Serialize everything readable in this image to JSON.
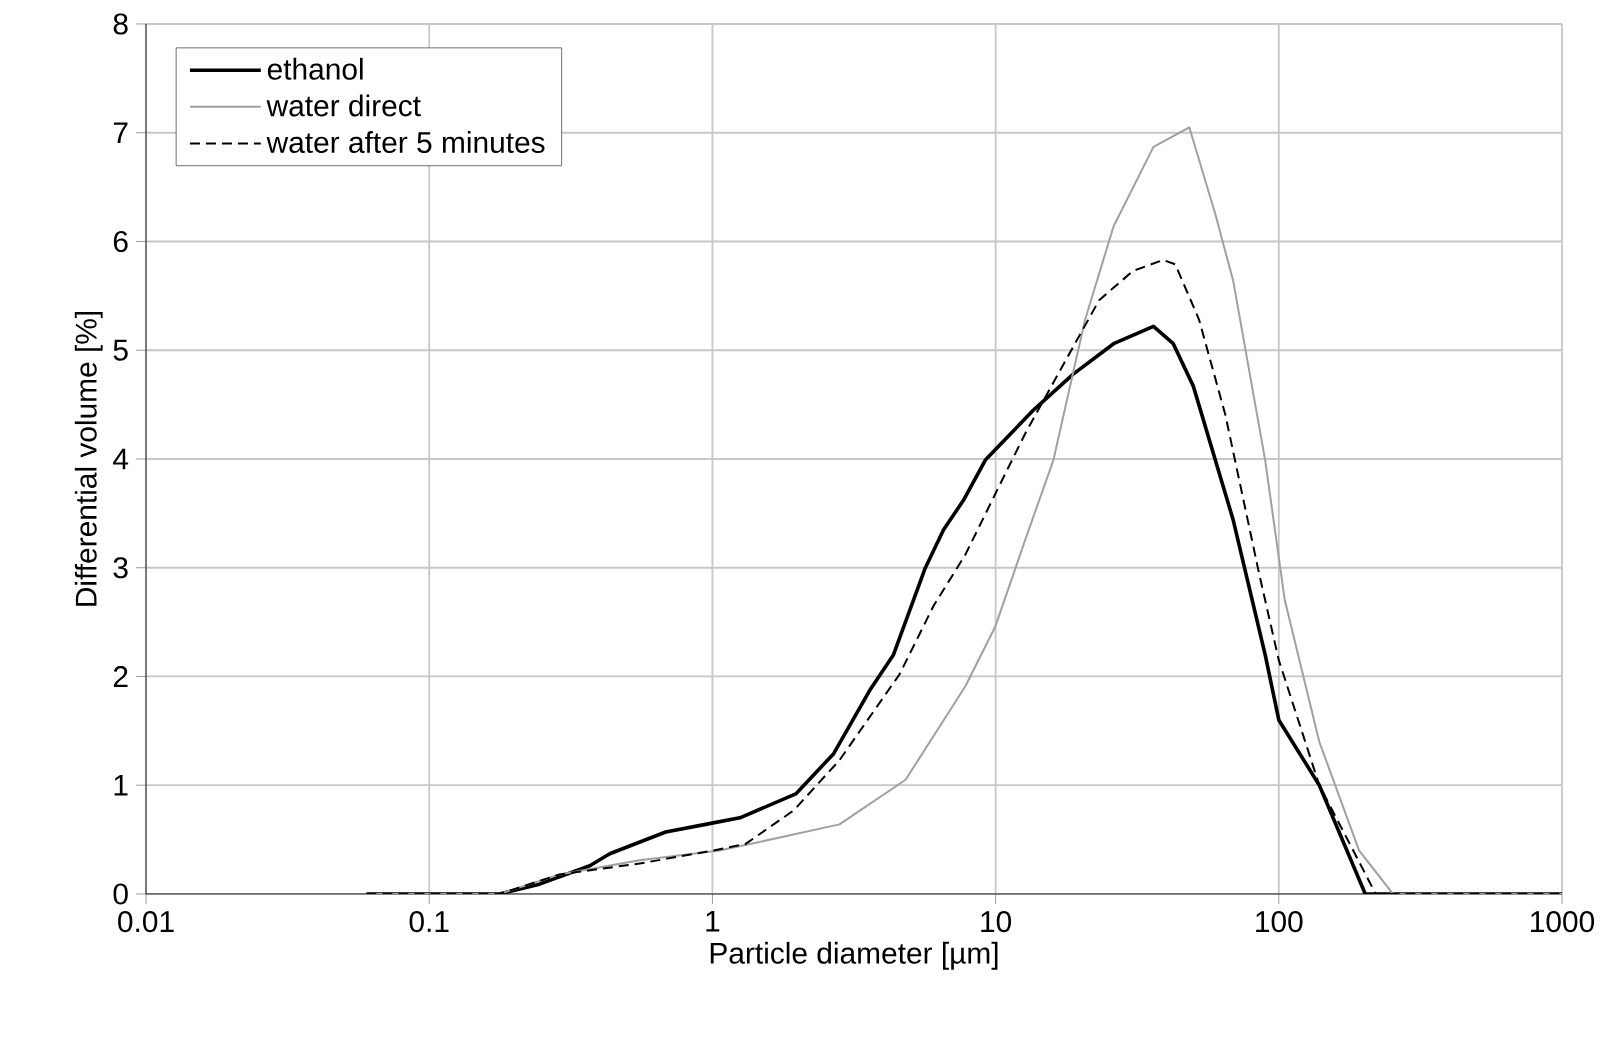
{
  "chart_data": {
    "type": "line",
    "xlabel": "Particle diameter [µm]",
    "ylabel": "Differential volume [%]",
    "log": "x",
    "xlim": [
      0.01,
      1000
    ],
    "xticks": [
      0.01,
      0.1,
      1,
      10,
      100,
      1000
    ],
    "ylim": [
      0,
      8
    ],
    "yticks": [
      0,
      1,
      2,
      3,
      4,
      5,
      6,
      7,
      8
    ],
    "grid": true,
    "legend": "top left",
    "marker": "none",
    "series": [
      {
        "name": "ethanol",
        "color": "#000000",
        "line_style": "solid",
        "x": [
          0.06,
          0.177,
          0.245,
          0.369,
          0.434,
          0.684,
          0.946,
          1.25,
          1.97,
          2.68,
          3.59,
          4.36,
          5.65,
          6.55,
          7.7,
          9.2,
          13.6,
          18.8,
          26.1,
          36.1,
          42.4,
          49.9,
          69,
          89.5,
          100,
          139,
          202,
          1000
        ],
        "values": [
          0,
          0,
          0.09,
          0.26,
          0.37,
          0.57,
          0.64,
          0.7,
          0.92,
          1.29,
          1.87,
          2.2,
          3.0,
          3.35,
          3.62,
          3.99,
          4.45,
          4.78,
          5.06,
          5.22,
          5.06,
          4.67,
          3.44,
          2.2,
          1.6,
          1.0,
          0,
          0
        ]
      },
      {
        "name": "water direct",
        "color": "#a0a0a0",
        "line_style": "solid",
        "x": [
          0.06,
          0.177,
          0.289,
          0.553,
          1.06,
          1.81,
          2.81,
          4.81,
          7.82,
          9.98,
          12.7,
          16.0,
          20.7,
          26.1,
          36.1,
          48.3,
          59.7,
          69,
          89.5,
          105,
          139,
          192,
          253,
          1000
        ],
        "values": [
          0,
          0,
          0.18,
          0.31,
          0.4,
          0.53,
          0.64,
          1.05,
          1.91,
          2.46,
          3.25,
          3.99,
          5.28,
          6.14,
          6.87,
          7.05,
          6.25,
          5.64,
          3.99,
          2.7,
          1.4,
          0.4,
          0,
          0
        ]
      },
      {
        "name": "water after 5 minutes",
        "color": "#000000",
        "line_style": "dashed",
        "x": [
          0.06,
          0.177,
          0.289,
          0.553,
          1.01,
          1.31,
          1.94,
          2.81,
          4.58,
          6.04,
          7.82,
          9.98,
          12.7,
          17.2,
          23.2,
          30.6,
          39.1,
          43.1,
          52.3,
          64.7,
          85.3,
          100,
          139,
          220,
          1000
        ],
        "values": [
          0,
          0,
          0.18,
          0.28,
          0.4,
          0.46,
          0.77,
          1.23,
          2.02,
          2.65,
          3.12,
          3.68,
          4.23,
          4.85,
          5.46,
          5.73,
          5.83,
          5.79,
          5.28,
          4.41,
          2.94,
          2.15,
          1.0,
          0,
          0
        ]
      }
    ]
  }
}
